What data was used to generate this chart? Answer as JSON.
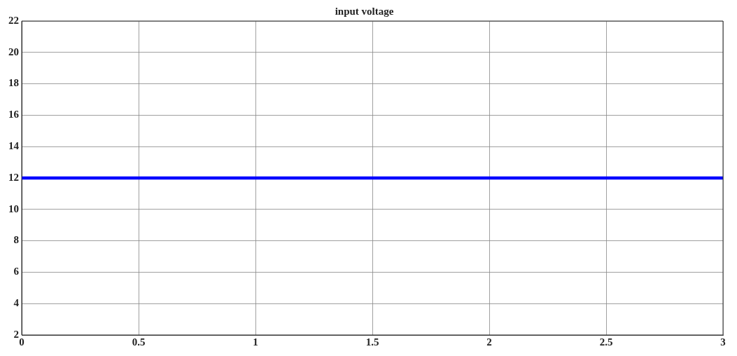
{
  "chart_data": {
    "type": "line",
    "title": "input voltage",
    "x": [
      0,
      3
    ],
    "series": [
      {
        "color": "#0000ff",
        "values": [
          12,
          12
        ]
      }
    ],
    "xlim": [
      0,
      3
    ],
    "xticks": [
      0,
      0.5,
      1,
      1.5,
      2,
      2.5,
      3
    ],
    "ylim": [
      2,
      22
    ],
    "yticks": [
      2,
      4,
      6,
      8,
      10,
      12,
      14,
      16,
      18,
      20,
      22
    ],
    "grid": true,
    "legend": false,
    "marker": "none",
    "line_style": "solid"
  }
}
